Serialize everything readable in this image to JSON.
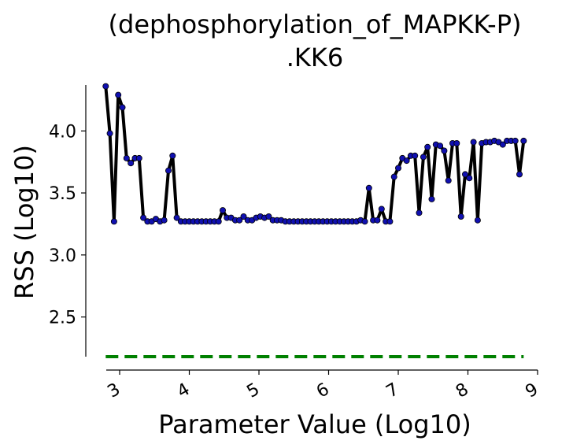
{
  "chart_data": {
    "type": "line",
    "title_lines": [
      "(dephosphorylation_of_MAPKK-P)",
      ".KK6"
    ],
    "xlabel": "Parameter Value (Log10)",
    "ylabel": "RSS (Log10)",
    "xlim": [
      2.8,
      9.0
    ],
    "ylim": [
      2.18,
      4.37
    ],
    "x_ticks": [
      3,
      4,
      5,
      6,
      7,
      8,
      9
    ],
    "x_tick_labels": [
      "3",
      "4",
      "5",
      "6",
      "7",
      "8",
      "9"
    ],
    "y_ticks": [
      2.5,
      3.0,
      3.5,
      4.0
    ],
    "y_tick_labels": [
      "2.5",
      "3.0",
      "3.5",
      "4.0"
    ],
    "grid": false,
    "series": [
      {
        "color": "#000000",
        "marker_color": "#1010b0",
        "points": [
          [
            2.8,
            4.36
          ],
          [
            2.86,
            3.98
          ],
          [
            2.92,
            3.27
          ],
          [
            2.98,
            4.29
          ],
          [
            3.04,
            4.19
          ],
          [
            3.1,
            3.78
          ],
          [
            3.16,
            3.74
          ],
          [
            3.22,
            3.78
          ],
          [
            3.28,
            3.78
          ],
          [
            3.34,
            3.3
          ],
          [
            3.4,
            3.27
          ],
          [
            3.46,
            3.27
          ],
          [
            3.52,
            3.29
          ],
          [
            3.58,
            3.27
          ],
          [
            3.64,
            3.28
          ],
          [
            3.7,
            3.68
          ],
          [
            3.76,
            3.8
          ],
          [
            3.82,
            3.3
          ],
          [
            3.88,
            3.27
          ],
          [
            3.94,
            3.27
          ],
          [
            4.0,
            3.27
          ],
          [
            4.06,
            3.27
          ],
          [
            4.12,
            3.27
          ],
          [
            4.18,
            3.27
          ],
          [
            4.24,
            3.27
          ],
          [
            4.3,
            3.27
          ],
          [
            4.36,
            3.27
          ],
          [
            4.42,
            3.27
          ],
          [
            4.48,
            3.36
          ],
          [
            4.54,
            3.3
          ],
          [
            4.6,
            3.3
          ],
          [
            4.66,
            3.28
          ],
          [
            4.72,
            3.28
          ],
          [
            4.78,
            3.31
          ],
          [
            4.84,
            3.28
          ],
          [
            4.9,
            3.28
          ],
          [
            4.96,
            3.3
          ],
          [
            5.02,
            3.31
          ],
          [
            5.08,
            3.3
          ],
          [
            5.14,
            3.31
          ],
          [
            5.2,
            3.28
          ],
          [
            5.26,
            3.28
          ],
          [
            5.32,
            3.28
          ],
          [
            5.38,
            3.27
          ],
          [
            5.44,
            3.27
          ],
          [
            5.5,
            3.27
          ],
          [
            5.56,
            3.27
          ],
          [
            5.62,
            3.27
          ],
          [
            5.68,
            3.27
          ],
          [
            5.74,
            3.27
          ],
          [
            5.8,
            3.27
          ],
          [
            5.86,
            3.27
          ],
          [
            5.92,
            3.27
          ],
          [
            5.98,
            3.27
          ],
          [
            6.04,
            3.27
          ],
          [
            6.1,
            3.27
          ],
          [
            6.16,
            3.27
          ],
          [
            6.22,
            3.27
          ],
          [
            6.28,
            3.27
          ],
          [
            6.34,
            3.27
          ],
          [
            6.4,
            3.27
          ],
          [
            6.46,
            3.28
          ],
          [
            6.52,
            3.27
          ],
          [
            6.58,
            3.54
          ],
          [
            6.64,
            3.28
          ],
          [
            6.7,
            3.28
          ],
          [
            6.76,
            3.37
          ],
          [
            6.82,
            3.27
          ],
          [
            6.88,
            3.27
          ],
          [
            6.94,
            3.63
          ],
          [
            7.0,
            3.7
          ],
          [
            7.06,
            3.78
          ],
          [
            7.12,
            3.76
          ],
          [
            7.18,
            3.8
          ],
          [
            7.24,
            3.8
          ],
          [
            7.3,
            3.34
          ],
          [
            7.36,
            3.79
          ],
          [
            7.42,
            3.87
          ],
          [
            7.48,
            3.45
          ],
          [
            7.54,
            3.89
          ],
          [
            7.6,
            3.88
          ],
          [
            7.66,
            3.84
          ],
          [
            7.72,
            3.6
          ],
          [
            7.78,
            3.9
          ],
          [
            7.84,
            3.9
          ],
          [
            7.9,
            3.31
          ],
          [
            7.96,
            3.65
          ],
          [
            8.02,
            3.62
          ],
          [
            8.08,
            3.91
          ],
          [
            8.14,
            3.28
          ],
          [
            8.2,
            3.9
          ],
          [
            8.26,
            3.91
          ],
          [
            8.32,
            3.91
          ],
          [
            8.38,
            3.92
          ],
          [
            8.44,
            3.91
          ],
          [
            8.5,
            3.89
          ],
          [
            8.56,
            3.92
          ],
          [
            8.62,
            3.92
          ],
          [
            8.68,
            3.92
          ],
          [
            8.74,
            3.65
          ],
          [
            8.8,
            3.92
          ]
        ]
      }
    ],
    "reference_line": {
      "y": 2.18,
      "x_range": [
        2.8,
        8.8
      ],
      "color": "#008000",
      "style": "dashed"
    }
  }
}
